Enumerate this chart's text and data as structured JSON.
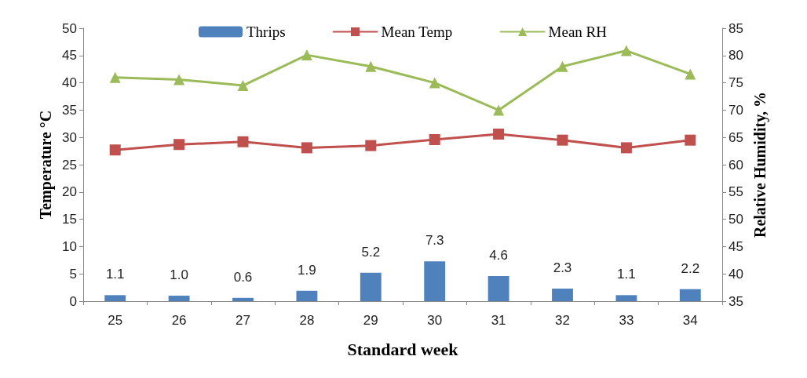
{
  "chart_data": {
    "type": "bar",
    "xlabel": "Standard week",
    "ylabel": "Temperature °C",
    "y2label": "Relative Humidity, %",
    "categories": [
      "25",
      "26",
      "27",
      "28",
      "29",
      "30",
      "31",
      "32",
      "33",
      "34"
    ],
    "ylim": [
      0,
      50
    ],
    "yticks": [
      0,
      5,
      10,
      15,
      20,
      25,
      30,
      35,
      40,
      45,
      50
    ],
    "y2lim": [
      35,
      85
    ],
    "y2ticks": [
      35,
      40,
      45,
      50,
      55,
      60,
      65,
      70,
      75,
      80,
      85
    ],
    "grid": false,
    "legend": "top",
    "series": [
      {
        "name": "Thrips",
        "color": "#4f81bd",
        "values": [
          1.1,
          1.0,
          0.6,
          1.9,
          5.2,
          7.3,
          4.6,
          2.3,
          1.1,
          2.2
        ],
        "value_labels": [
          "1.1",
          "1.0",
          "0.6",
          "1.9",
          "5.2",
          "7.3",
          "4.6",
          "2.3",
          "1.1",
          "2.2"
        ]
      },
      {
        "name": "Mean Temp",
        "type": "line",
        "color": "#c0504d",
        "marker": "square",
        "values": [
          27.7,
          28.7,
          29.2,
          28.1,
          28.5,
          29.6,
          30.6,
          29.5,
          28.1,
          29.5
        ]
      },
      {
        "name": "Mean RH",
        "type": "line",
        "axis": "y2",
        "color": "#9bbb59",
        "marker": "triangle",
        "values": [
          76,
          75.6,
          74.5,
          80.1,
          78,
          75,
          70,
          78,
          80.9,
          76.6
        ]
      }
    ]
  }
}
